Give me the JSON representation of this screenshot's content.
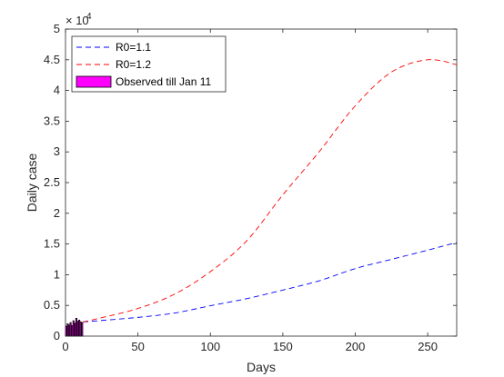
{
  "chart_data": {
    "type": "line",
    "xlabel": "Days",
    "ylabel": "Daily case",
    "xlim": [
      0,
      270
    ],
    "ylim": [
      0,
      50000
    ],
    "exponent_label": "× 10",
    "exponent_power": "4",
    "x_ticks": [
      0,
      50,
      100,
      150,
      200,
      250
    ],
    "x_tick_labels": [
      "0",
      "50",
      "100",
      "150",
      "200",
      "250"
    ],
    "y_ticks": [
      0,
      5000,
      10000,
      15000,
      20000,
      25000,
      30000,
      35000,
      40000,
      45000,
      50000
    ],
    "y_tick_labels": [
      "0",
      "0.5",
      "1",
      "1.5",
      "2",
      "2.5",
      "3",
      "3.5",
      "4",
      "4.5",
      "5"
    ],
    "legend_position": "top-left",
    "series": [
      {
        "name": "R0=1.1",
        "kind": "line",
        "style": "dashed",
        "color": "#0000ff",
        "points": [
          [
            12,
            2300
          ],
          [
            25,
            2550
          ],
          [
            50,
            3050
          ],
          [
            75,
            3750
          ],
          [
            100,
            4950
          ],
          [
            125,
            6100
          ],
          [
            150,
            7500
          ],
          [
            175,
            9000
          ],
          [
            200,
            11000
          ],
          [
            225,
            12500
          ],
          [
            250,
            14000
          ],
          [
            270,
            15250
          ]
        ]
      },
      {
        "name": "R0=1.2",
        "kind": "line",
        "style": "dashed",
        "color": "#ff0000",
        "points": [
          [
            12,
            2300
          ],
          [
            25,
            3000
          ],
          [
            50,
            4500
          ],
          [
            75,
            6800
          ],
          [
            100,
            10500
          ],
          [
            125,
            15500
          ],
          [
            150,
            23000
          ],
          [
            175,
            30000
          ],
          [
            200,
            37500
          ],
          [
            225,
            43000
          ],
          [
            250,
            45000
          ],
          [
            270,
            44200
          ]
        ]
      },
      {
        "name": "Observed till Jan 11",
        "kind": "bar",
        "color": "#ff00ff",
        "edge_color": "#000000",
        "x": [
          0,
          1,
          2,
          3,
          4,
          5,
          6,
          7,
          8,
          9,
          10,
          11
        ],
        "values": [
          1600,
          2000,
          1800,
          2200,
          1700,
          2500,
          2100,
          2900,
          2400,
          2600,
          2300,
          2200
        ]
      }
    ]
  }
}
